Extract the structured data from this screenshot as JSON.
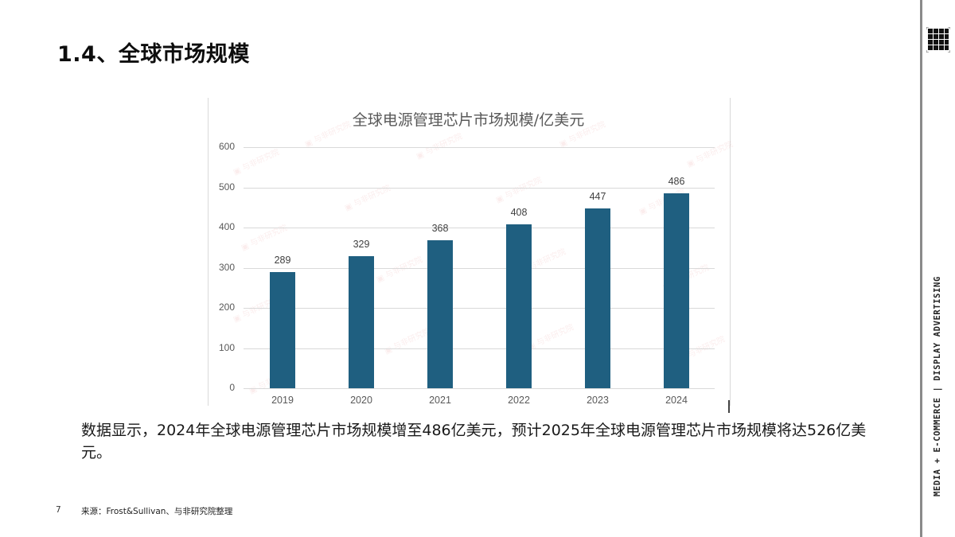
{
  "page": {
    "title": "1.4、全球市场规模",
    "side_text": "MEDIA + E-COMMERCE | DISPLAY ADVERTISING",
    "page_number": "7",
    "source": "来源：Frost&Sullivan、与非研究院整理",
    "body_text": "数据显示，2024年全球电源管理芯片市场规模增至486亿美元，预计2025年全球电源管理芯片市场规模将达526亿美元。",
    "logo_icon": "grid-logo-icon",
    "watermark_text": "与非研究院"
  },
  "colors": {
    "bar": "#1f5f80",
    "gridline": "#d9d9d9",
    "axis_text": "#595959"
  },
  "chart_data": {
    "type": "bar",
    "title": "全球电源管理芯片市场规模/亿美元",
    "categories": [
      "2019",
      "2020",
      "2021",
      "2022",
      "2023",
      "2024"
    ],
    "values": [
      289,
      329,
      368,
      408,
      447,
      486
    ],
    "data_labels": [
      "289",
      "329",
      "368",
      "408",
      "447",
      "486"
    ],
    "xlabel": "",
    "ylabel": "",
    "ylim": [
      0,
      600
    ],
    "yticks": [
      "0",
      "100",
      "200",
      "300",
      "400",
      "500",
      "600"
    ],
    "grid": true,
    "legend": "none"
  }
}
